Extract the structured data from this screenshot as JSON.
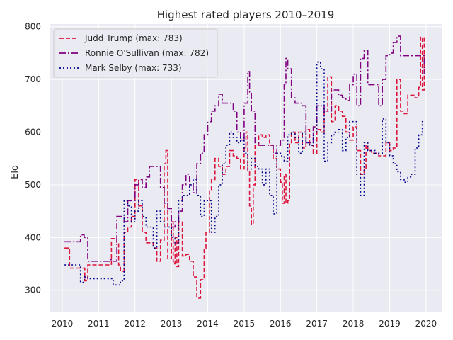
{
  "chart_data": {
    "type": "line",
    "style": "step",
    "title": "Highest rated players 2010–2019",
    "xlabel": "",
    "ylabel": "Elo",
    "xlim": [
      2009.65,
      2020.45
    ],
    "ylim": [
      258,
      805
    ],
    "xticks": [
      2010,
      2011,
      2012,
      2013,
      2014,
      2015,
      2016,
      2017,
      2018,
      2019,
      2020
    ],
    "yticks": [
      300,
      400,
      500,
      600,
      700,
      800
    ],
    "grid": true,
    "legend_position": "top-left",
    "colors": {
      "background": "#eaeaf2",
      "grid": "#ffffff",
      "text": "#262626"
    },
    "series": [
      {
        "name": "Judd Trump (max: 783)",
        "color": "#dc143c",
        "dash": "6,3",
        "points": [
          [
            2010.06,
            380
          ],
          [
            2010.2,
            342
          ],
          [
            2010.5,
            342
          ],
          [
            2010.62,
            318
          ],
          [
            2010.7,
            348
          ],
          [
            2011.0,
            348
          ],
          [
            2011.3,
            348
          ],
          [
            2011.35,
            398
          ],
          [
            2011.5,
            388
          ],
          [
            2011.55,
            348
          ],
          [
            2011.6,
            336
          ],
          [
            2011.7,
            410
          ],
          [
            2011.8,
            420
          ],
          [
            2011.9,
            440
          ],
          [
            2012.0,
            510
          ],
          [
            2012.1,
            460
          ],
          [
            2012.2,
            410
          ],
          [
            2012.3,
            390
          ],
          [
            2012.5,
            380
          ],
          [
            2012.6,
            355
          ],
          [
            2012.7,
            395
          ],
          [
            2012.8,
            540
          ],
          [
            2012.85,
            565
          ],
          [
            2012.9,
            360
          ],
          [
            2013.0,
            430
          ],
          [
            2013.05,
            350
          ],
          [
            2013.1,
            400
          ],
          [
            2013.15,
            345
          ],
          [
            2013.2,
            430
          ],
          [
            2013.3,
            365
          ],
          [
            2013.4,
            368
          ],
          [
            2013.5,
            355
          ],
          [
            2013.6,
            325
          ],
          [
            2013.7,
            285
          ],
          [
            2013.8,
            320
          ],
          [
            2013.9,
            380
          ],
          [
            2013.95,
            410
          ],
          [
            2014.05,
            490
          ],
          [
            2014.1,
            510
          ],
          [
            2014.2,
            550
          ],
          [
            2014.3,
            535
          ],
          [
            2014.4,
            520
          ],
          [
            2014.5,
            535
          ],
          [
            2014.6,
            565
          ],
          [
            2014.7,
            555
          ],
          [
            2014.8,
            550
          ],
          [
            2014.9,
            530
          ],
          [
            2015.0,
            570
          ],
          [
            2015.05,
            600
          ],
          [
            2015.1,
            525
          ],
          [
            2015.15,
            460
          ],
          [
            2015.2,
            425
          ],
          [
            2015.25,
            500
          ],
          [
            2015.3,
            575
          ],
          [
            2015.4,
            595
          ],
          [
            2015.5,
            590
          ],
          [
            2015.6,
            595
          ],
          [
            2015.7,
            575
          ],
          [
            2015.8,
            550
          ],
          [
            2015.9,
            530
          ],
          [
            2016.0,
            505
          ],
          [
            2016.05,
            465
          ],
          [
            2016.1,
            520
          ],
          [
            2016.15,
            465
          ],
          [
            2016.2,
            470
          ],
          [
            2016.25,
            580
          ],
          [
            2016.3,
            600
          ],
          [
            2016.4,
            580
          ],
          [
            2016.5,
            600
          ],
          [
            2016.6,
            570
          ],
          [
            2016.7,
            605
          ],
          [
            2016.8,
            575
          ],
          [
            2016.9,
            560
          ],
          [
            2017.0,
            605
          ],
          [
            2017.1,
            600
          ],
          [
            2017.2,
            640
          ],
          [
            2017.3,
            705
          ],
          [
            2017.4,
            620
          ],
          [
            2017.5,
            650
          ],
          [
            2017.6,
            640
          ],
          [
            2017.7,
            630
          ],
          [
            2017.8,
            600
          ],
          [
            2017.9,
            585
          ],
          [
            2018.0,
            610
          ],
          [
            2018.1,
            565
          ],
          [
            2018.2,
            520
          ],
          [
            2018.3,
            530
          ],
          [
            2018.35,
            575
          ],
          [
            2018.4,
            565
          ],
          [
            2018.5,
            560
          ],
          [
            2018.6,
            560
          ],
          [
            2018.7,
            555
          ],
          [
            2018.8,
            555
          ],
          [
            2018.9,
            580
          ],
          [
            2019.0,
            565
          ],
          [
            2019.1,
            570
          ],
          [
            2019.2,
            700
          ],
          [
            2019.3,
            640
          ],
          [
            2019.4,
            635
          ],
          [
            2019.5,
            670
          ],
          [
            2019.6,
            670
          ],
          [
            2019.7,
            665
          ],
          [
            2019.8,
            685
          ],
          [
            2019.85,
            780
          ],
          [
            2019.9,
            680
          ],
          [
            2019.95,
            783
          ]
        ]
      },
      {
        "name": "Ronnie O'Sullivan (max: 782)",
        "color": "#800080",
        "dash": "9,3,2,3",
        "points": [
          [
            2010.06,
            392
          ],
          [
            2010.3,
            392
          ],
          [
            2010.5,
            405
          ],
          [
            2010.6,
            400
          ],
          [
            2010.7,
            355
          ],
          [
            2011.0,
            355
          ],
          [
            2011.3,
            358
          ],
          [
            2011.4,
            355
          ],
          [
            2011.5,
            440
          ],
          [
            2011.6,
            440
          ],
          [
            2011.7,
            430
          ],
          [
            2011.8,
            470
          ],
          [
            2011.9,
            470
          ],
          [
            2012.0,
            500
          ],
          [
            2012.1,
            510
          ],
          [
            2012.2,
            495
          ],
          [
            2012.3,
            515
          ],
          [
            2012.4,
            535
          ],
          [
            2012.6,
            535
          ],
          [
            2012.7,
            495
          ],
          [
            2012.8,
            465
          ],
          [
            2012.9,
            455
          ],
          [
            2013.0,
            420
          ],
          [
            2013.1,
            430
          ],
          [
            2013.2,
            450
          ],
          [
            2013.3,
            500
          ],
          [
            2013.4,
            520
          ],
          [
            2013.5,
            500
          ],
          [
            2013.6,
            485
          ],
          [
            2013.7,
            540
          ],
          [
            2013.8,
            560
          ],
          [
            2013.9,
            595
          ],
          [
            2014.0,
            620
          ],
          [
            2014.1,
            640
          ],
          [
            2014.2,
            650
          ],
          [
            2014.3,
            672
          ],
          [
            2014.4,
            655
          ],
          [
            2014.5,
            655
          ],
          [
            2014.6,
            655
          ],
          [
            2014.7,
            640
          ],
          [
            2014.8,
            600
          ],
          [
            2014.9,
            585
          ],
          [
            2015.0,
            655
          ],
          [
            2015.1,
            715
          ],
          [
            2015.15,
            675
          ],
          [
            2015.2,
            640
          ],
          [
            2015.3,
            580
          ],
          [
            2015.4,
            575
          ],
          [
            2015.5,
            575
          ],
          [
            2015.6,
            575
          ],
          [
            2015.7,
            575
          ],
          [
            2015.8,
            560
          ],
          [
            2015.9,
            575
          ],
          [
            2016.0,
            585
          ],
          [
            2016.1,
            690
          ],
          [
            2016.15,
            740
          ],
          [
            2016.2,
            720
          ],
          [
            2016.3,
            665
          ],
          [
            2016.4,
            655
          ],
          [
            2016.5,
            655
          ],
          [
            2016.6,
            650
          ],
          [
            2016.7,
            580
          ],
          [
            2016.8,
            580
          ],
          [
            2016.9,
            610
          ],
          [
            2017.0,
            650
          ],
          [
            2017.1,
            650
          ],
          [
            2017.2,
            640
          ],
          [
            2017.3,
            640
          ],
          [
            2017.4,
            680
          ],
          [
            2017.5,
            680
          ],
          [
            2017.6,
            670
          ],
          [
            2017.7,
            665
          ],
          [
            2017.8,
            660
          ],
          [
            2017.9,
            690
          ],
          [
            2018.0,
            710
          ],
          [
            2018.1,
            650
          ],
          [
            2018.2,
            740
          ],
          [
            2018.3,
            755
          ],
          [
            2018.4,
            690
          ],
          [
            2018.5,
            690
          ],
          [
            2018.6,
            690
          ],
          [
            2018.7,
            650
          ],
          [
            2018.8,
            700
          ],
          [
            2018.9,
            745
          ],
          [
            2019.0,
            750
          ],
          [
            2019.1,
            770
          ],
          [
            2019.2,
            782
          ],
          [
            2019.3,
            745
          ],
          [
            2019.4,
            745
          ],
          [
            2019.5,
            745
          ],
          [
            2019.6,
            745
          ],
          [
            2019.7,
            745
          ],
          [
            2019.8,
            745
          ],
          [
            2019.9,
            745
          ],
          [
            2019.95,
            710
          ]
        ]
      },
      {
        "name": "Mark Selby (max: 733)",
        "color": "#00008b",
        "dash": "2,3",
        "points": [
          [
            2010.06,
            348
          ],
          [
            2010.2,
            348
          ],
          [
            2010.4,
            348
          ],
          [
            2010.5,
            315
          ],
          [
            2010.6,
            325
          ],
          [
            2010.7,
            322
          ],
          [
            2011.0,
            322
          ],
          [
            2011.3,
            322
          ],
          [
            2011.4,
            310
          ],
          [
            2011.6,
            318
          ],
          [
            2011.7,
            470
          ],
          [
            2011.8,
            460
          ],
          [
            2011.9,
            430
          ],
          [
            2012.0,
            450
          ],
          [
            2012.1,
            470
          ],
          [
            2012.2,
            440
          ],
          [
            2012.3,
            420
          ],
          [
            2012.4,
            420
          ],
          [
            2012.5,
            380
          ],
          [
            2012.6,
            450
          ],
          [
            2012.7,
            430
          ],
          [
            2012.8,
            420
          ],
          [
            2012.9,
            420
          ],
          [
            2013.0,
            400
          ],
          [
            2013.1,
            390
          ],
          [
            2013.2,
            470
          ],
          [
            2013.3,
            480
          ],
          [
            2013.4,
            480
          ],
          [
            2013.5,
            500
          ],
          [
            2013.6,
            510
          ],
          [
            2013.7,
            480
          ],
          [
            2013.8,
            440
          ],
          [
            2013.9,
            470
          ],
          [
            2014.0,
            470
          ],
          [
            2014.1,
            410
          ],
          [
            2014.2,
            440
          ],
          [
            2014.3,
            500
          ],
          [
            2014.4,
            540
          ],
          [
            2014.5,
            575
          ],
          [
            2014.6,
            600
          ],
          [
            2014.7,
            590
          ],
          [
            2014.8,
            580
          ],
          [
            2014.9,
            590
          ],
          [
            2015.0,
            560
          ],
          [
            2015.1,
            530
          ],
          [
            2015.2,
            550
          ],
          [
            2015.3,
            535
          ],
          [
            2015.4,
            530
          ],
          [
            2015.5,
            500
          ],
          [
            2015.6,
            530
          ],
          [
            2015.7,
            480
          ],
          [
            2015.8,
            445
          ],
          [
            2015.9,
            560
          ],
          [
            2016.0,
            555
          ],
          [
            2016.1,
            545
          ],
          [
            2016.2,
            595
          ],
          [
            2016.3,
            600
          ],
          [
            2016.4,
            590
          ],
          [
            2016.5,
            560
          ],
          [
            2016.6,
            600
          ],
          [
            2016.7,
            580
          ],
          [
            2016.8,
            575
          ],
          [
            2016.9,
            600
          ],
          [
            2017.0,
            733
          ],
          [
            2017.1,
            720
          ],
          [
            2017.2,
            545
          ],
          [
            2017.3,
            580
          ],
          [
            2017.4,
            595
          ],
          [
            2017.5,
            600
          ],
          [
            2017.6,
            605
          ],
          [
            2017.7,
            565
          ],
          [
            2017.8,
            590
          ],
          [
            2017.9,
            620
          ],
          [
            2018.0,
            620
          ],
          [
            2018.1,
            520
          ],
          [
            2018.2,
            480
          ],
          [
            2018.3,
            580
          ],
          [
            2018.4,
            565
          ],
          [
            2018.5,
            565
          ],
          [
            2018.6,
            560
          ],
          [
            2018.7,
            560
          ],
          [
            2018.8,
            625
          ],
          [
            2018.9,
            580
          ],
          [
            2019.0,
            555
          ],
          [
            2019.1,
            540
          ],
          [
            2019.2,
            525
          ],
          [
            2019.3,
            510
          ],
          [
            2019.4,
            505
          ],
          [
            2019.5,
            515
          ],
          [
            2019.6,
            520
          ],
          [
            2019.7,
            570
          ],
          [
            2019.8,
            595
          ],
          [
            2019.9,
            620
          ],
          [
            2019.95,
            620
          ]
        ]
      }
    ]
  }
}
